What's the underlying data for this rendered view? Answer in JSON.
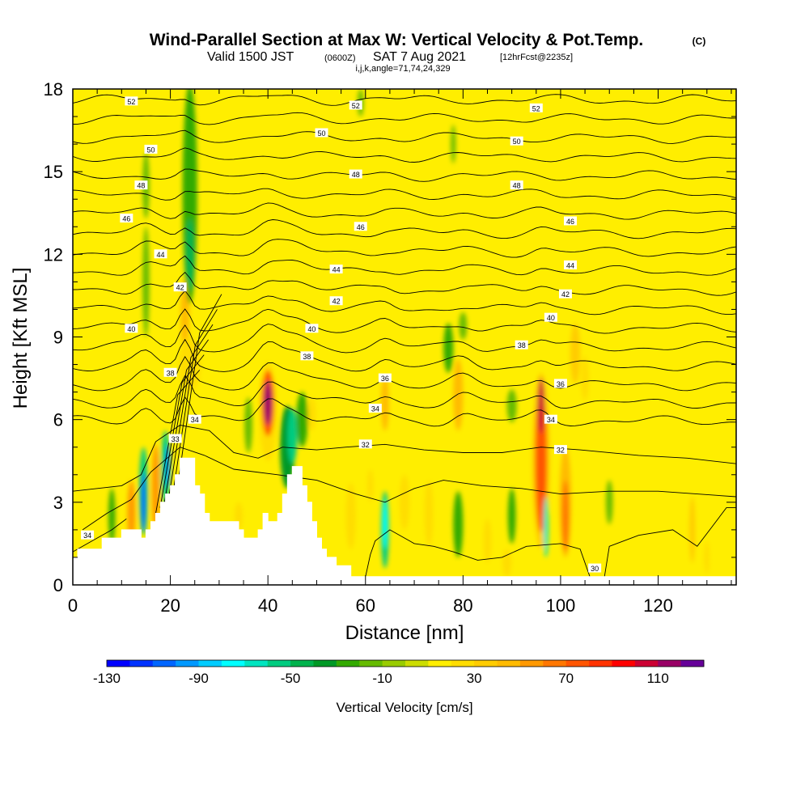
{
  "header": {
    "title": "Wind-Parallel Section at Max W: Vertical Velocity & Pot.Temp.",
    "title_mark": "(C)",
    "valid_prefix": "Valid 1500 JST",
    "valid_zulu": "(0600Z)",
    "valid_date": "SAT 7 Aug 2021",
    "forecast": "[12hrFcst@2235z]",
    "section_params": "i,j,k,angle=71,74,24,329"
  },
  "chart_data": {
    "type": "heatmap",
    "xlabel": "Distance [nm]",
    "ylabel": "Height [Kft MSL]",
    "xlim": [
      0,
      136
    ],
    "ylim": [
      0,
      18
    ],
    "x_ticks": [
      "0",
      "20",
      "40",
      "60",
      "80",
      "100",
      "120"
    ],
    "y_ticks": [
      "0",
      "3",
      "6",
      "9",
      "12",
      "15",
      "18"
    ],
    "colorbar": {
      "title": "Vertical Velocity [cm/s]",
      "tick_labels": [
        "-130",
        "-90",
        "-50",
        "-10",
        "30",
        "70",
        "110"
      ],
      "range": [
        -130,
        120
      ],
      "step": 10,
      "colors": [
        "#0000ff",
        "#0033ff",
        "#0066ff",
        "#0099ff",
        "#00ccff",
        "#00ffff",
        "#00e5c0",
        "#00cc80",
        "#00b34d",
        "#009926",
        "#33aa00",
        "#66bb00",
        "#99cc00",
        "#ccdd00",
        "#ffee00",
        "#ffdd00",
        "#ffcc00",
        "#ffbb00",
        "#ff9900",
        "#ff7700",
        "#ff5500",
        "#ff3300",
        "#ff0000",
        "#cc0033",
        "#990066",
        "#660099"
      ]
    },
    "background_value": 0,
    "terrain_kft": [
      [
        0,
        1.0
      ],
      [
        1,
        1.0
      ],
      [
        1,
        1.3
      ],
      [
        6,
        1.3
      ],
      [
        6,
        1.7
      ],
      [
        10,
        1.7
      ],
      [
        10,
        2.0
      ],
      [
        14,
        2.0
      ],
      [
        14,
        1.7
      ],
      [
        15,
        1.7
      ],
      [
        15,
        2.0
      ],
      [
        16,
        2.0
      ],
      [
        16,
        2.3
      ],
      [
        17,
        2.3
      ],
      [
        17,
        2.6
      ],
      [
        18,
        2.6
      ],
      [
        18,
        3.0
      ],
      [
        19,
        3.0
      ],
      [
        19,
        3.3
      ],
      [
        20,
        3.3
      ],
      [
        20,
        3.6
      ],
      [
        21,
        3.6
      ],
      [
        21,
        4.0
      ],
      [
        22,
        4.0
      ],
      [
        22,
        4.6
      ],
      [
        25,
        4.6
      ],
      [
        25,
        3.6
      ],
      [
        26,
        3.6
      ],
      [
        26,
        3.3
      ],
      [
        27,
        3.3
      ],
      [
        27,
        2.6
      ],
      [
        28,
        2.6
      ],
      [
        28,
        2.3
      ],
      [
        34,
        2.3
      ],
      [
        34,
        2.0
      ],
      [
        35,
        2.0
      ],
      [
        35,
        1.7
      ],
      [
        38,
        1.7
      ],
      [
        38,
        2.0
      ],
      [
        39,
        2.0
      ],
      [
        39,
        2.6
      ],
      [
        40,
        2.6
      ],
      [
        40,
        2.3
      ],
      [
        42,
        2.3
      ],
      [
        42,
        2.6
      ],
      [
        43,
        2.6
      ],
      [
        43,
        3.3
      ],
      [
        44,
        3.3
      ],
      [
        44,
        4.0
      ],
      [
        45,
        4.0
      ],
      [
        45,
        4.3
      ],
      [
        47,
        4.3
      ],
      [
        47,
        3.6
      ],
      [
        48,
        3.6
      ],
      [
        48,
        3.0
      ],
      [
        49,
        3.0
      ],
      [
        49,
        2.3
      ],
      [
        50,
        2.3
      ],
      [
        50,
        1.7
      ],
      [
        51,
        1.7
      ],
      [
        51,
        1.3
      ],
      [
        52,
        1.3
      ],
      [
        52,
        1.0
      ],
      [
        54,
        1.0
      ],
      [
        54,
        0.7
      ],
      [
        57,
        0.7
      ],
      [
        57,
        0.3
      ],
      [
        136,
        0.3
      ]
    ],
    "theta_levels": [
      30,
      31,
      32,
      33,
      34,
      35,
      36,
      37,
      38,
      39,
      40,
      41,
      42,
      43,
      44,
      45,
      46,
      47,
      48,
      49,
      50,
      51,
      52,
      53
    ],
    "contour_labels": [
      {
        "text": "52",
        "x": 12,
        "z": 17.55
      },
      {
        "text": "52",
        "x": 58,
        "z": 17.4
      },
      {
        "text": "52",
        "x": 95,
        "z": 17.3
      },
      {
        "text": "50",
        "x": 16,
        "z": 15.8
      },
      {
        "text": "50",
        "x": 51,
        "z": 16.4
      },
      {
        "text": "50",
        "x": 91,
        "z": 16.1
      },
      {
        "text": "48",
        "x": 14,
        "z": 14.5
      },
      {
        "text": "48",
        "x": 58,
        "z": 14.9
      },
      {
        "text": "48",
        "x": 91,
        "z": 14.5
      },
      {
        "text": "46",
        "x": 11,
        "z": 13.3
      },
      {
        "text": "46",
        "x": 59,
        "z": 13.0
      },
      {
        "text": "46",
        "x": 102,
        "z": 13.2
      },
      {
        "text": "44",
        "x": 18,
        "z": 12.0
      },
      {
        "text": "44",
        "x": 54,
        "z": 11.45
      },
      {
        "text": "44",
        "x": 102,
        "z": 11.6
      },
      {
        "text": "42",
        "x": 22,
        "z": 10.8
      },
      {
        "text": "42",
        "x": 54,
        "z": 10.3
      },
      {
        "text": "42",
        "x": 101,
        "z": 10.55
      },
      {
        "text": "40",
        "x": 12,
        "z": 9.3
      },
      {
        "text": "40",
        "x": 49,
        "z": 9.3
      },
      {
        "text": "40",
        "x": 98,
        "z": 9.7
      },
      {
        "text": "38",
        "x": 20,
        "z": 7.7
      },
      {
        "text": "38",
        "x": 48,
        "z": 8.3
      },
      {
        "text": "38",
        "x": 92,
        "z": 8.7
      },
      {
        "text": "36",
        "x": 64,
        "z": 7.5
      },
      {
        "text": "36",
        "x": 100,
        "z": 7.3
      },
      {
        "text": "34",
        "x": 25,
        "z": 6.0
      },
      {
        "text": "34",
        "x": 62,
        "z": 6.4
      },
      {
        "text": "34",
        "x": 98,
        "z": 6.0
      },
      {
        "text": "33",
        "x": 21,
        "z": 5.3
      },
      {
        "text": "32",
        "x": 60,
        "z": 5.1
      },
      {
        "text": "32",
        "x": 100,
        "z": 4.9
      },
      {
        "text": "34",
        "x": 3,
        "z": 1.8
      },
      {
        "text": "30",
        "x": 107,
        "z": 0.6
      }
    ]
  }
}
